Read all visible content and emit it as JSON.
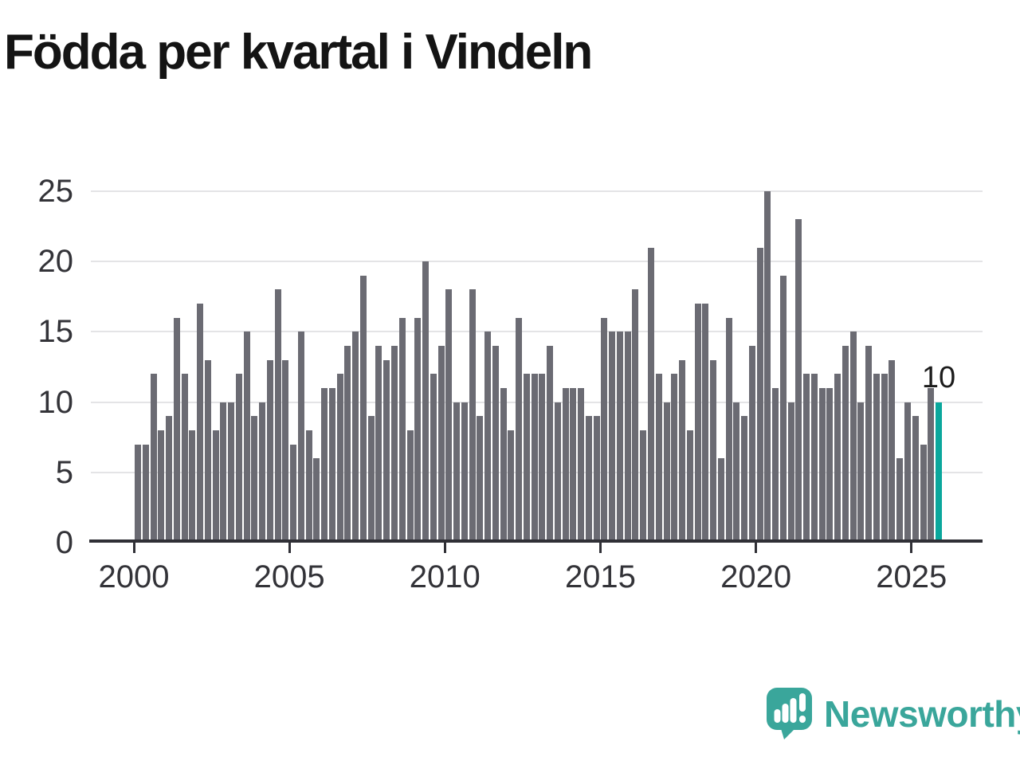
{
  "title": "Födda per kvartal i Vindeln",
  "logo": {
    "text": "Newsworthy",
    "color": "#3aa69b"
  },
  "colors": {
    "bar": "#6b6b73",
    "highlight": "#0aa79c",
    "gridline": "#e4e4e6",
    "axis": "#303036",
    "text": "#333338"
  },
  "chart_data": {
    "type": "bar",
    "title": "Födda per kvartal i Vindeln",
    "xlabel": "",
    "ylabel": "",
    "start_period": "2000-Q1",
    "end_period": "2025-Q4",
    "x_tick_labels": [
      "2000",
      "2005",
      "2010",
      "2015",
      "2020",
      "2025"
    ],
    "y_ticks": [
      0,
      5,
      10,
      15,
      20,
      25
    ],
    "ylim": [
      0,
      25
    ],
    "grid": "horizontal",
    "legend": "none",
    "highlight_last": true,
    "last_value_label": "10",
    "values": [
      7,
      7,
      12,
      8,
      9,
      16,
      12,
      8,
      17,
      13,
      8,
      10,
      10,
      12,
      15,
      9,
      10,
      13,
      18,
      13,
      7,
      15,
      8,
      6,
      11,
      11,
      12,
      14,
      15,
      19,
      9,
      14,
      13,
      14,
      16,
      8,
      16,
      20,
      12,
      14,
      18,
      10,
      10,
      18,
      9,
      15,
      14,
      11,
      8,
      16,
      12,
      12,
      12,
      14,
      10,
      11,
      11,
      11,
      9,
      9,
      16,
      15,
      15,
      15,
      18,
      8,
      21,
      12,
      10,
      12,
      13,
      8,
      17,
      17,
      13,
      6,
      16,
      10,
      9,
      14,
      21,
      25,
      11,
      19,
      10,
      23,
      12,
      12,
      11,
      11,
      12,
      14,
      15,
      10,
      14,
      12,
      12,
      13,
      6,
      10,
      9,
      7,
      11,
      10
    ]
  }
}
